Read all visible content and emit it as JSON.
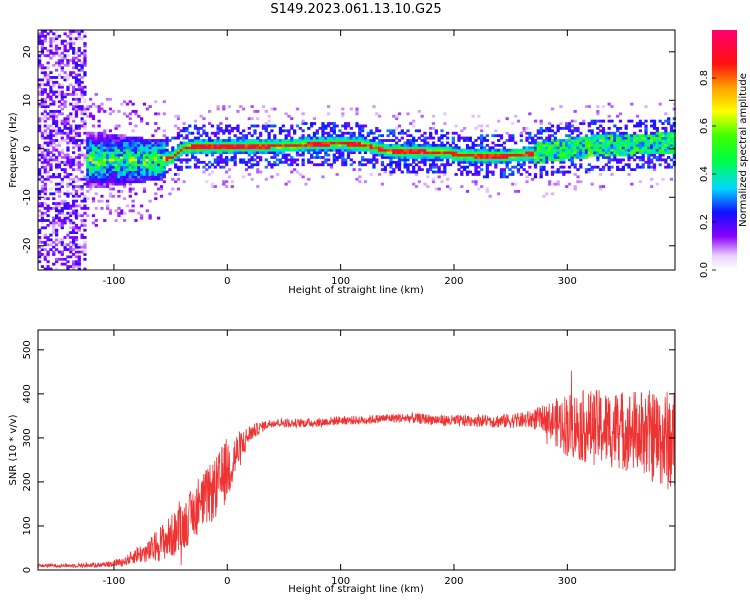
{
  "figure": {
    "title": "S149.2023.061.13.10.G25"
  },
  "chart_data": [
    {
      "type": "heatmap",
      "name": "spectrogram",
      "xlabel": "Height of straight line (km)",
      "ylabel": "Frequency (Hz)",
      "xlim": [
        -167,
        395
      ],
      "ylim": [
        -25,
        24.5
      ],
      "xticks": [
        -100,
        0,
        100,
        200,
        300
      ],
      "yticks": [
        -20,
        -10,
        0,
        10,
        20
      ],
      "grid": false,
      "colorbar": {
        "label": "Normalized spectral amplitude",
        "range": [
          0,
          1
        ],
        "ticks": [
          0.0,
          0.2,
          0.4,
          0.6,
          0.8
        ],
        "colormap": "rainbow (white-violet-blue-cyan-green-yellow-orange-red-magenta)"
      },
      "ridge": {
        "description": "dominant frequency track",
        "x": [
          -60,
          -50,
          -40,
          -30,
          0,
          50,
          80,
          100,
          120,
          140,
          160,
          190,
          210,
          240,
          260,
          280,
          300,
          320,
          340,
          360,
          395
        ],
        "y": [
          -2.5,
          -2.0,
          0,
          0.2,
          0.2,
          0.4,
          0.8,
          0.9,
          0.6,
          -0.6,
          -0.8,
          -0.9,
          -1.6,
          -1.8,
          -1.4,
          -0.8,
          -0.2,
          0.3,
          0.6,
          0.7,
          0.9
        ]
      }
    },
    {
      "type": "line",
      "name": "snr",
      "xlabel": "Height of straight line (km)",
      "ylabel": "SNR (10 * v/v)",
      "xlim": [
        -167,
        395
      ],
      "ylim": [
        0,
        545
      ],
      "xticks": [
        -100,
        0,
        100,
        200,
        300
      ],
      "yticks": [
        0,
        100,
        200,
        300,
        400,
        500
      ],
      "grid": false,
      "series": [
        {
          "color": "#ee3333",
          "x": [
            -167,
            -140,
            -110,
            -90,
            -80,
            -70,
            -60,
            -50,
            -40,
            -30,
            -20,
            -10,
            0,
            10,
            20,
            30,
            40,
            60,
            80,
            100,
            120,
            140,
            160,
            180,
            200,
            220,
            240,
            260,
            280,
            290,
            300,
            320,
            340,
            360,
            380,
            395
          ],
          "y": [
            10,
            10,
            12,
            20,
            35,
            40,
            60,
            75,
            95,
            130,
            160,
            185,
            230,
            270,
            310,
            325,
            335,
            333,
            335,
            340,
            340,
            345,
            345,
            342,
            338,
            340,
            338,
            340,
            345,
            335,
            330,
            325,
            320,
            315,
            300,
            290
          ],
          "noise": [
            4,
            4,
            6,
            10,
            20,
            25,
            40,
            50,
            55,
            60,
            65,
            70,
            75,
            45,
            20,
            12,
            10,
            10,
            10,
            10,
            10,
            10,
            12,
            12,
            14,
            14,
            16,
            18,
            30,
            55,
            75,
            85,
            90,
            95,
            110,
            120
          ]
        }
      ]
    }
  ]
}
